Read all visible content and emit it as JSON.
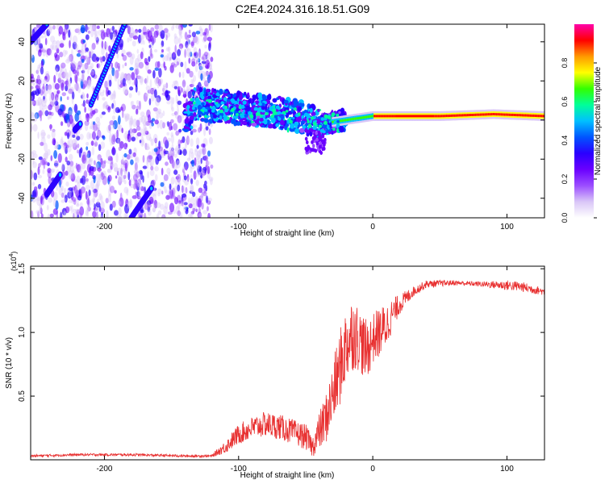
{
  "figure": {
    "title": "C2E4.2024.316.18.51.G09"
  },
  "chart_data": [
    {
      "type": "heatmap",
      "title": "",
      "xlabel": "Height of straight line (km)",
      "ylabel": "Frequency (Hz)",
      "xlim": [
        -255,
        128
      ],
      "ylim": [
        -50,
        49
      ],
      "xticks": [
        -200,
        -100,
        0,
        100
      ],
      "xtick_labels": [
        "-200",
        "-100",
        "0",
        "100"
      ],
      "yticks": [
        -40,
        -20,
        0,
        20,
        40
      ],
      "ytick_labels": [
        "-40",
        "-20",
        "0",
        "20",
        "40"
      ],
      "colorbar": {
        "label": "Normalized spectral amplitude",
        "range": [
          0,
          1
        ],
        "ticks": [
          0.0,
          0.2,
          0.4,
          0.6,
          0.8
        ],
        "tick_labels": [
          "0.0",
          "0.2",
          "0.4",
          "0.6",
          "0.8"
        ],
        "colormap": [
          "#ffffff",
          "#d9c6f7",
          "#9b4dff",
          "#6a00ff",
          "#2a00ff",
          "#0055ff",
          "#00c0ff",
          "#00ff99",
          "#33ff00",
          "#ffff00",
          "#ff9900",
          "#ff0000",
          "#ff00aa"
        ]
      },
      "carrier_track": [
        {
          "x": -135,
          "y": 8
        },
        {
          "x": -110,
          "y": 7
        },
        {
          "x": -90,
          "y": 5
        },
        {
          "x": -70,
          "y": 4
        },
        {
          "x": -50,
          "y": 1
        },
        {
          "x": -40,
          "y": -3
        },
        {
          "x": -30,
          "y": -1
        },
        {
          "x": -10,
          "y": 1
        },
        {
          "x": 0,
          "y": 2
        },
        {
          "x": 50,
          "y": 2
        },
        {
          "x": 90,
          "y": 3
        },
        {
          "x": 128,
          "y": 2
        }
      ],
      "diagonal_tracks": [
        {
          "from": {
            "x": -255,
            "y": 40
          },
          "to": {
            "x": -243,
            "y": 49
          }
        },
        {
          "from": {
            "x": -243,
            "y": -38
          },
          "to": {
            "x": -233,
            "y": -28
          }
        },
        {
          "from": {
            "x": -222,
            "y": -5
          },
          "to": {
            "x": -218,
            "y": -2
          }
        },
        {
          "from": {
            "x": -210,
            "y": 8
          },
          "to": {
            "x": -185,
            "y": 49
          }
        },
        {
          "from": {
            "x": -180,
            "y": -50
          },
          "to": {
            "x": -165,
            "y": -35
          }
        }
      ]
    },
    {
      "type": "line",
      "title": "",
      "xlabel": "Height of straight line (km)",
      "ylabel": "SNR (10 * v/v)",
      "y_multiplier": "(x10",
      "y_multiplier_exp": "4",
      "y_multiplier_close": ")",
      "xlim": [
        -255,
        128
      ],
      "ylim": [
        0,
        1.52
      ],
      "xticks": [
        -200,
        -100,
        0,
        100
      ],
      "xtick_labels": [
        "-200",
        "-100",
        "0",
        "100"
      ],
      "yticks": [
        0.5,
        1.0,
        1.5
      ],
      "ytick_labels": [
        "0.5",
        "1.0",
        "1.5"
      ],
      "color": "#e83030",
      "series": [
        {
          "x": [
            -255,
            -220,
            -180,
            -140,
            -120,
            -110,
            -100,
            -90,
            -80,
            -70,
            -60,
            -50,
            -45,
            -40,
            -35,
            -30,
            -25,
            -20,
            -15,
            -10,
            -5,
            0,
            5,
            10,
            15,
            20,
            30,
            40,
            60,
            80,
            100,
            110,
            128
          ],
          "y": [
            0.03,
            0.04,
            0.04,
            0.03,
            0.03,
            0.1,
            0.2,
            0.25,
            0.28,
            0.26,
            0.22,
            0.18,
            0.1,
            0.22,
            0.32,
            0.5,
            0.7,
            0.9,
            1.0,
            0.95,
            0.85,
            0.95,
            1.0,
            1.05,
            1.15,
            1.22,
            1.32,
            1.38,
            1.39,
            1.38,
            1.37,
            1.36,
            1.32
          ],
          "noise": [
            0.01,
            0.01,
            0.01,
            0.01,
            0.01,
            0.05,
            0.08,
            0.09,
            0.1,
            0.1,
            0.1,
            0.1,
            0.08,
            0.15,
            0.2,
            0.25,
            0.3,
            0.3,
            0.3,
            0.25,
            0.25,
            0.2,
            0.2,
            0.18,
            0.12,
            0.08,
            0.04,
            0.03,
            0.02,
            0.02,
            0.04,
            0.04,
            0.03
          ]
        }
      ]
    }
  ]
}
